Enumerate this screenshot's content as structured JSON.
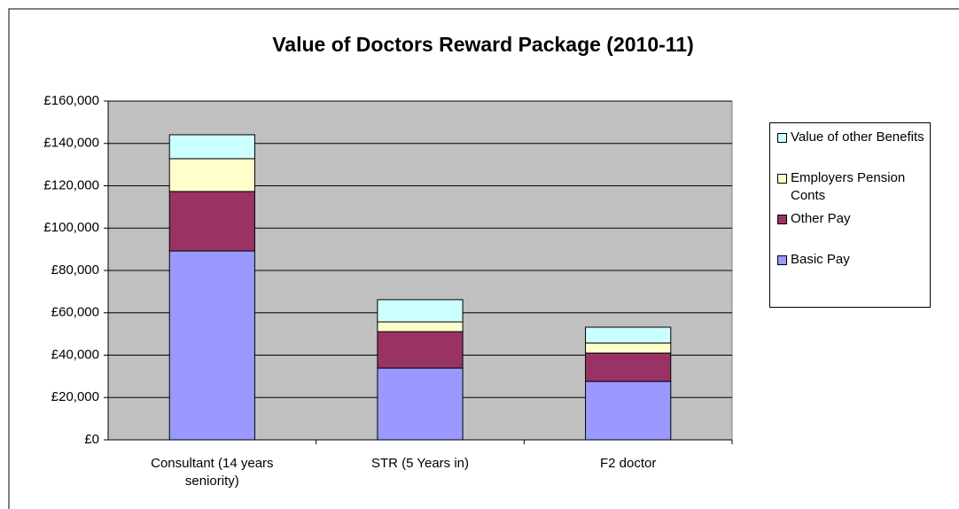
{
  "chart_data": {
    "type": "stacked_bar",
    "title": "Value of Doctors Reward Package (2010-11)",
    "categories": [
      "Consultant (14 years seniority)",
      "STR (5 Years in)",
      "F2 doctor"
    ],
    "series": [
      {
        "name": "Basic Pay",
        "color": "#9999ff",
        "values": [
          89200,
          33900,
          27600
        ]
      },
      {
        "name": "Other Pay",
        "color": "#993366",
        "values": [
          28100,
          17200,
          13400
        ]
      },
      {
        "name": "Employers Pension Conts",
        "color": "#ffffcc",
        "values": [
          15500,
          4600,
          4700
        ]
      },
      {
        "name": "Value of other Benefits",
        "color": "#ccffff",
        "values": [
          11300,
          10500,
          7500
        ]
      }
    ],
    "ylim": [
      0,
      160000
    ],
    "yticks": [
      {
        "value": 0,
        "label": "£0"
      },
      {
        "value": 20000,
        "label": "£20,000"
      },
      {
        "value": 40000,
        "label": "£40,000"
      },
      {
        "value": 60000,
        "label": "£60,000"
      },
      {
        "value": 80000,
        "label": "£80,000"
      },
      {
        "value": 100000,
        "label": "£100,000"
      },
      {
        "value": 120000,
        "label": "£120,000"
      },
      {
        "value": 140000,
        "label": "£140,000"
      },
      {
        "value": 160000,
        "label": "£160,000"
      }
    ],
    "grid": true,
    "legend": "right"
  }
}
